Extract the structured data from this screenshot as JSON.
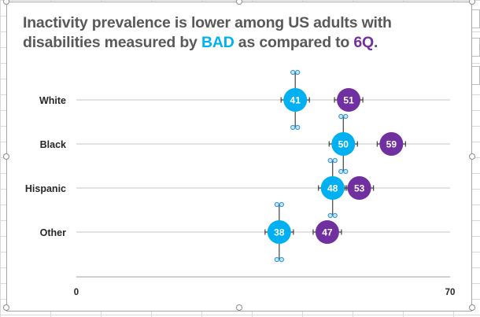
{
  "title": {
    "part1": "Inactivity prevalence is lower among US adults with disabilities measured by ",
    "bad": "BAD",
    "part2": " as compared to ",
    "sixq": "6Q",
    "part3": "."
  },
  "colors": {
    "bad": "#00b0f0",
    "sixq": "#7030a0",
    "title": "#595959",
    "grid": "#d9d9d9"
  },
  "chart_data": {
    "type": "scatter",
    "categories": [
      "White",
      "Black",
      "Hispanic",
      "Other"
    ],
    "series": [
      {
        "name": "BAD",
        "values": [
          41,
          50,
          48,
          38
        ]
      },
      {
        "name": "6Q",
        "values": [
          51,
          59,
          53,
          47
        ]
      }
    ],
    "xlim": [
      0,
      70
    ],
    "x_ticks": [
      "0",
      "70"
    ],
    "grid": true
  }
}
